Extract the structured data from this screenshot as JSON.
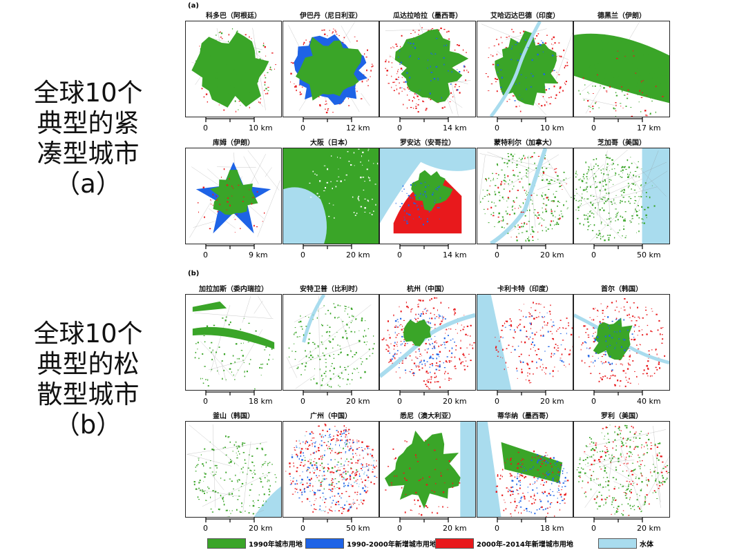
{
  "side_labels": {
    "compact": [
      "全球10个",
      "典型的紧",
      "凑型城市",
      "（a）"
    ],
    "sprawl": [
      "全球10个",
      "典型的松",
      "散型城市",
      "（b）"
    ]
  },
  "panels": {
    "a": {
      "tag": "(a)",
      "cities": [
        {
          "name": "科多巴（阿根廷）",
          "scale_start": "0",
          "scale_end": "10 km",
          "profile": "green_blob"
        },
        {
          "name": "伊巴丹（尼日利亚）",
          "scale_start": "0",
          "scale_end": "12 km",
          "profile": "green_blue_ring"
        },
        {
          "name": "瓜达拉哈拉（墨西哥）",
          "scale_start": "0",
          "scale_end": "14 km",
          "profile": "green_red_ring"
        },
        {
          "name": "艾哈迈达巴德（印度）",
          "scale_start": "0",
          "scale_end": "10 km",
          "profile": "green_river"
        },
        {
          "name": "德黑兰（伊朗）",
          "scale_start": "0",
          "scale_end": "17 km",
          "profile": "green_spread"
        },
        {
          "name": "库姆（伊朗）",
          "scale_start": "0",
          "scale_end": "9 km",
          "profile": "blue_star"
        },
        {
          "name": "大阪（日本）",
          "scale_start": "0",
          "scale_end": "20 km",
          "profile": "bay"
        },
        {
          "name": "罗安达（安哥拉）",
          "scale_start": "0",
          "scale_end": "14 km",
          "profile": "coast_red"
        },
        {
          "name": "蒙特利尔（加拿大）",
          "scale_start": "0",
          "scale_end": "20 km",
          "profile": "river_island"
        },
        {
          "name": "芝加哥（美国）",
          "scale_start": "0",
          "scale_end": "50 km",
          "profile": "lake_east"
        }
      ]
    },
    "b": {
      "tag": "(b)",
      "cities": [
        {
          "name": "加拉加斯（委内瑞拉）",
          "scale_start": "0",
          "scale_end": "18 km",
          "profile": "valley"
        },
        {
          "name": "安特卫普（比利时）",
          "scale_start": "0",
          "scale_end": "20 km",
          "profile": "river_sparse"
        },
        {
          "name": "杭州（中国）",
          "scale_start": "0",
          "scale_end": "20 km",
          "profile": "mixed_river"
        },
        {
          "name": "卡利卡特（印度）",
          "scale_start": "0",
          "scale_end": "20 km",
          "profile": "coast_sparse"
        },
        {
          "name": "首尔（韩国）",
          "scale_start": "0",
          "scale_end": "40 km",
          "profile": "mixed_river2"
        },
        {
          "name": "釜山（韩国）",
          "scale_start": "0",
          "scale_end": "20 km",
          "profile": "coast_corner"
        },
        {
          "name": "广州（中国）",
          "scale_start": "0",
          "scale_end": "50 km",
          "profile": "dense_mixed"
        },
        {
          "name": "悉尼（澳大利亚）",
          "scale_start": "0",
          "scale_end": "20 km",
          "profile": "green_east_sea"
        },
        {
          "name": "蒂华纳（墨西哥）",
          "scale_start": "0",
          "scale_end": "18 km",
          "profile": "west_sea"
        },
        {
          "name": "罗利（美国）",
          "scale_start": "0",
          "scale_end": "20 km",
          "profile": "sparse_green"
        }
      ]
    }
  },
  "legend": [
    {
      "label": "1990年城市用地",
      "color": "#3aa528"
    },
    {
      "label": "1990-2000年新增城市用地",
      "color": "#1e63e6"
    },
    {
      "label": "2000年-2014年新增城市用地",
      "color": "#e8191c"
    },
    {
      "label": "水体",
      "color": "#a9dcee"
    }
  ],
  "colors": {
    "green": "#3aa528",
    "blue": "#1e63e6",
    "red": "#e8191c",
    "water": "#a9dcee",
    "road": "#8c8c8c"
  }
}
